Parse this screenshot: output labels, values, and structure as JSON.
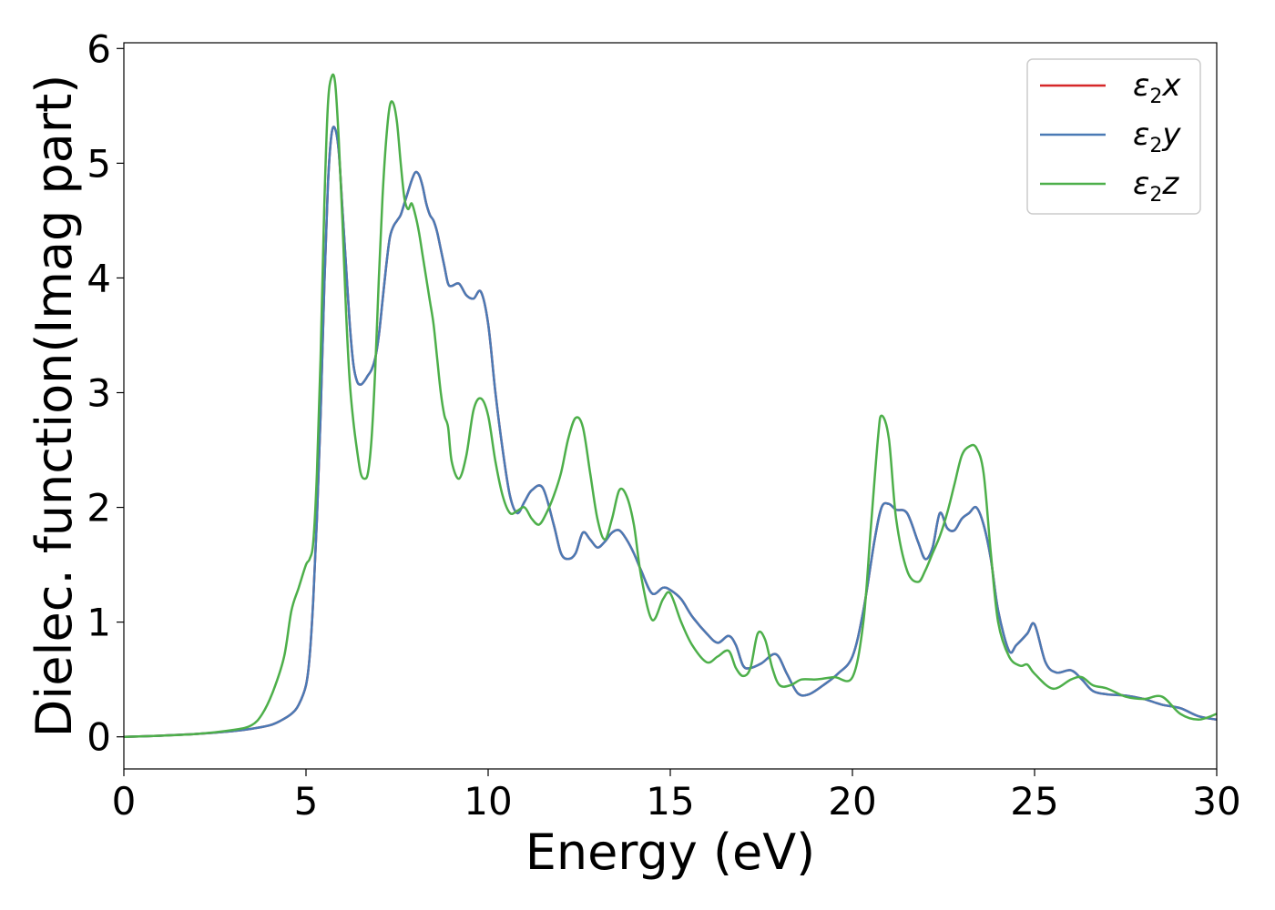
{
  "chart_data": {
    "type": "line",
    "xlabel": "Energy (eV)",
    "ylabel": "Dielec. function(Imag part)",
    "xlim": [
      0,
      30
    ],
    "ylim": [
      -0.28,
      6.05
    ],
    "xticks": [
      0,
      5,
      10,
      15,
      20,
      25,
      30
    ],
    "yticks": [
      0,
      1,
      2,
      3,
      4,
      5,
      6
    ],
    "grid": false,
    "legend_position": "top-right",
    "series": [
      {
        "name": "ε2x",
        "legend_base": "ε",
        "legend_sub": "2",
        "legend_var": "x",
        "color": "#d62728",
        "x": [
          0,
          1,
          2,
          3,
          3.5,
          4,
          4.3,
          4.6,
          4.8,
          5,
          5.1,
          5.2,
          5.3,
          5.4,
          5.5,
          5.6,
          5.7,
          5.8,
          5.9,
          6,
          6.1,
          6.2,
          6.3,
          6.4,
          6.5,
          6.6,
          6.7,
          6.8,
          6.9,
          7,
          7.1,
          7.2,
          7.3,
          7.4,
          7.5,
          7.6,
          7.7,
          7.8,
          7.9,
          8,
          8.1,
          8.2,
          8.3,
          8.4,
          8.5,
          8.6,
          8.7,
          8.8,
          8.9,
          9,
          9.2,
          9.4,
          9.6,
          9.8,
          10,
          10.2,
          10.4,
          10.6,
          10.8,
          11,
          11.2,
          11.5,
          11.8,
          12,
          12.2,
          12.4,
          12.6,
          12.8,
          13,
          13.2,
          13.4,
          13.6,
          13.8,
          14,
          14.2,
          14.5,
          14.8,
          15,
          15.3,
          15.6,
          16,
          16.3,
          16.6,
          16.8,
          17,
          17.2,
          17.5,
          17.9,
          18.2,
          18.5,
          18.8,
          19.2,
          19.6,
          20,
          20.3,
          20.6,
          20.8,
          21,
          21.2,
          21.5,
          21.8,
          22,
          22.2,
          22.4,
          22.6,
          22.8,
          23,
          23.2,
          23.4,
          23.6,
          23.8,
          24,
          24.3,
          24.5,
          24.8,
          25,
          25.3,
          25.6,
          26,
          26.3,
          26.6,
          27,
          27.5,
          28,
          28.5,
          29,
          29.5,
          30
        ],
        "y": [
          0,
          0.01,
          0.025,
          0.05,
          0.07,
          0.1,
          0.14,
          0.2,
          0.28,
          0.45,
          0.7,
          1.2,
          1.9,
          2.8,
          3.9,
          4.8,
          5.25,
          5.3,
          5.1,
          4.6,
          4.1,
          3.6,
          3.25,
          3.1,
          3.07,
          3.1,
          3.15,
          3.2,
          3.3,
          3.5,
          3.8,
          4.1,
          4.35,
          4.45,
          4.5,
          4.55,
          4.65,
          4.75,
          4.85,
          4.92,
          4.9,
          4.8,
          4.65,
          4.55,
          4.5,
          4.4,
          4.25,
          4.1,
          3.95,
          3.93,
          3.95,
          3.85,
          3.82,
          3.88,
          3.6,
          3.0,
          2.5,
          2.1,
          1.95,
          2.05,
          2.15,
          2.17,
          1.85,
          1.6,
          1.55,
          1.6,
          1.78,
          1.72,
          1.65,
          1.7,
          1.78,
          1.8,
          1.72,
          1.6,
          1.45,
          1.25,
          1.3,
          1.28,
          1.2,
          1.05,
          0.9,
          0.82,
          0.88,
          0.8,
          0.62,
          0.6,
          0.64,
          0.72,
          0.55,
          0.38,
          0.37,
          0.45,
          0.55,
          0.7,
          1.1,
          1.7,
          2.0,
          2.03,
          1.98,
          1.95,
          1.7,
          1.55,
          1.65,
          1.95,
          1.82,
          1.8,
          1.9,
          1.95,
          2.0,
          1.85,
          1.55,
          1.1,
          0.75,
          0.8,
          0.9,
          0.98,
          0.65,
          0.56,
          0.58,
          0.5,
          0.4,
          0.37,
          0.36,
          0.33,
          0.28,
          0.25,
          0.18,
          0.15
        ],
        "stroke_width": 2.5
      },
      {
        "name": "ε2y",
        "legend_base": "ε",
        "legend_sub": "2",
        "legend_var": "y",
        "color": "#4a7ab5",
        "x": [
          0,
          1,
          2,
          3,
          3.5,
          4,
          4.3,
          4.6,
          4.8,
          5,
          5.1,
          5.2,
          5.3,
          5.4,
          5.5,
          5.6,
          5.7,
          5.8,
          5.9,
          6,
          6.1,
          6.2,
          6.3,
          6.4,
          6.5,
          6.6,
          6.7,
          6.8,
          6.9,
          7,
          7.1,
          7.2,
          7.3,
          7.4,
          7.5,
          7.6,
          7.7,
          7.8,
          7.9,
          8,
          8.1,
          8.2,
          8.3,
          8.4,
          8.5,
          8.6,
          8.7,
          8.8,
          8.9,
          9,
          9.2,
          9.4,
          9.6,
          9.8,
          10,
          10.2,
          10.4,
          10.6,
          10.8,
          11,
          11.2,
          11.5,
          11.8,
          12,
          12.2,
          12.4,
          12.6,
          12.8,
          13,
          13.2,
          13.4,
          13.6,
          13.8,
          14,
          14.2,
          14.5,
          14.8,
          15,
          15.3,
          15.6,
          16,
          16.3,
          16.6,
          16.8,
          17,
          17.2,
          17.5,
          17.9,
          18.2,
          18.5,
          18.8,
          19.2,
          19.6,
          20,
          20.3,
          20.6,
          20.8,
          21,
          21.2,
          21.5,
          21.8,
          22,
          22.2,
          22.4,
          22.6,
          22.8,
          23,
          23.2,
          23.4,
          23.6,
          23.8,
          24,
          24.3,
          24.5,
          24.8,
          25,
          25.3,
          25.6,
          26,
          26.3,
          26.6,
          27,
          27.5,
          28,
          28.5,
          29,
          29.5,
          30
        ],
        "y": [
          0,
          0.01,
          0.025,
          0.05,
          0.07,
          0.1,
          0.14,
          0.2,
          0.28,
          0.45,
          0.7,
          1.2,
          1.9,
          2.8,
          3.9,
          4.8,
          5.25,
          5.3,
          5.1,
          4.6,
          4.1,
          3.6,
          3.25,
          3.1,
          3.07,
          3.1,
          3.15,
          3.2,
          3.3,
          3.5,
          3.8,
          4.1,
          4.35,
          4.45,
          4.5,
          4.55,
          4.65,
          4.75,
          4.85,
          4.92,
          4.9,
          4.8,
          4.65,
          4.55,
          4.5,
          4.4,
          4.25,
          4.1,
          3.95,
          3.93,
          3.95,
          3.85,
          3.82,
          3.88,
          3.6,
          3.0,
          2.5,
          2.1,
          1.95,
          2.05,
          2.15,
          2.17,
          1.85,
          1.6,
          1.55,
          1.6,
          1.78,
          1.72,
          1.65,
          1.7,
          1.78,
          1.8,
          1.72,
          1.6,
          1.45,
          1.25,
          1.3,
          1.28,
          1.2,
          1.05,
          0.9,
          0.82,
          0.88,
          0.8,
          0.62,
          0.6,
          0.64,
          0.72,
          0.55,
          0.38,
          0.37,
          0.45,
          0.55,
          0.7,
          1.1,
          1.7,
          2.0,
          2.03,
          1.98,
          1.95,
          1.7,
          1.55,
          1.65,
          1.95,
          1.82,
          1.8,
          1.9,
          1.95,
          2.0,
          1.85,
          1.55,
          1.1,
          0.75,
          0.8,
          0.9,
          0.98,
          0.65,
          0.56,
          0.58,
          0.5,
          0.4,
          0.37,
          0.36,
          0.33,
          0.28,
          0.25,
          0.18,
          0.15
        ],
        "stroke_width": 2.5
      },
      {
        "name": "ε2z",
        "legend_base": "ε",
        "legend_sub": "2",
        "legend_var": "z",
        "color": "#4daf4a",
        "x": [
          0,
          1,
          2,
          3,
          3.5,
          3.8,
          4.1,
          4.4,
          4.6,
          4.8,
          5,
          5.1,
          5.2,
          5.3,
          5.4,
          5.5,
          5.6,
          5.7,
          5.8,
          5.9,
          6,
          6.1,
          6.2,
          6.3,
          6.4,
          6.5,
          6.6,
          6.7,
          6.8,
          6.9,
          7,
          7.1,
          7.2,
          7.3,
          7.4,
          7.5,
          7.6,
          7.7,
          7.8,
          7.9,
          8,
          8.1,
          8.2,
          8.3,
          8.4,
          8.5,
          8.6,
          8.7,
          8.8,
          8.9,
          9,
          9.2,
          9.4,
          9.6,
          9.8,
          10,
          10.2,
          10.4,
          10.6,
          10.8,
          11,
          11.2,
          11.4,
          11.6,
          11.8,
          12,
          12.2,
          12.4,
          12.6,
          12.8,
          13,
          13.2,
          13.4,
          13.6,
          13.8,
          14,
          14.2,
          14.5,
          14.8,
          15,
          15.3,
          15.6,
          16,
          16.3,
          16.6,
          16.8,
          17,
          17.2,
          17.4,
          17.6,
          17.8,
          18,
          18.3,
          18.6,
          19,
          19.5,
          20,
          20.3,
          20.5,
          20.7,
          20.8,
          21,
          21.2,
          21.5,
          21.8,
          22,
          22.2,
          22.4,
          22.6,
          22.8,
          23,
          23.2,
          23.4,
          23.6,
          23.8,
          24,
          24.3,
          24.6,
          24.8,
          25,
          25.5,
          26,
          26.3,
          26.6,
          27,
          27.5,
          28,
          28.5,
          29,
          29.5,
          30
        ],
        "y": [
          0,
          0.01,
          0.025,
          0.06,
          0.1,
          0.2,
          0.4,
          0.7,
          1.1,
          1.3,
          1.5,
          1.55,
          1.7,
          2.3,
          3.3,
          4.6,
          5.5,
          5.75,
          5.7,
          5.2,
          4.5,
          3.7,
          3.1,
          2.75,
          2.5,
          2.3,
          2.25,
          2.3,
          2.6,
          3.2,
          4.0,
          4.7,
          5.2,
          5.5,
          5.52,
          5.35,
          5.0,
          4.7,
          4.6,
          4.65,
          4.55,
          4.4,
          4.2,
          4.0,
          3.8,
          3.6,
          3.3,
          3.0,
          2.8,
          2.7,
          2.4,
          2.25,
          2.45,
          2.85,
          2.95,
          2.8,
          2.4,
          2.1,
          1.95,
          1.97,
          2.0,
          1.9,
          1.85,
          1.95,
          2.1,
          2.3,
          2.6,
          2.78,
          2.7,
          2.3,
          1.9,
          1.72,
          1.9,
          2.15,
          2.1,
          1.85,
          1.4,
          1.02,
          1.2,
          1.25,
          1.0,
          0.8,
          0.65,
          0.7,
          0.75,
          0.6,
          0.53,
          0.6,
          0.9,
          0.85,
          0.6,
          0.45,
          0.45,
          0.5,
          0.5,
          0.52,
          0.52,
          1.0,
          1.8,
          2.6,
          2.8,
          2.6,
          1.9,
          1.45,
          1.35,
          1.45,
          1.6,
          1.75,
          1.95,
          2.2,
          2.45,
          2.53,
          2.52,
          2.3,
          1.6,
          1.0,
          0.7,
          0.62,
          0.63,
          0.55,
          0.42,
          0.5,
          0.52,
          0.45,
          0.42,
          0.35,
          0.33,
          0.35,
          0.2,
          0.15,
          0.2
        ],
        "stroke_width": 2.5
      }
    ]
  }
}
